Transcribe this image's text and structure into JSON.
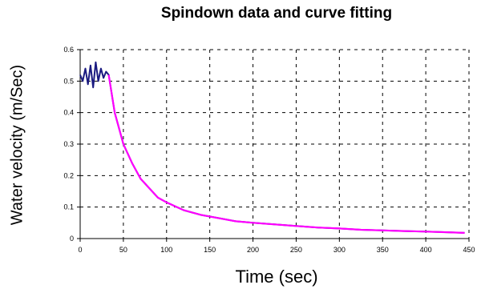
{
  "chart_data": {
    "type": "line",
    "title": "Spindown data and curve fitting",
    "xlabel": "Time (sec)",
    "ylabel": "Water velocity (m/Sec)",
    "xlim": [
      0,
      450
    ],
    "ylim": [
      0,
      0.6
    ],
    "x_ticks": [
      "0",
      "50",
      "100",
      "150",
      "200",
      "250",
      "300",
      "350",
      "400",
      "450"
    ],
    "y_ticks": [
      "0",
      "0.1",
      "0.2",
      "0.3",
      "0.4",
      "0.5",
      "0.6"
    ],
    "grid": "dashed",
    "legend": "none",
    "series": [
      {
        "color": "#1a1a80",
        "x": [
          0,
          3,
          6,
          9,
          12,
          15,
          18,
          21,
          24,
          27,
          30,
          33,
          40,
          50,
          60,
          70,
          80,
          90,
          100,
          120,
          140,
          160,
          180,
          200,
          225,
          250,
          275,
          300,
          325,
          350,
          375,
          400,
          425,
          445
        ],
        "y": [
          0.52,
          0.5,
          0.54,
          0.49,
          0.55,
          0.48,
          0.56,
          0.5,
          0.54,
          0.51,
          0.53,
          0.52,
          0.4,
          0.3,
          0.24,
          0.19,
          0.16,
          0.13,
          0.115,
          0.09,
          0.075,
          0.065,
          0.055,
          0.05,
          0.045,
          0.04,
          0.035,
          0.032,
          0.028,
          0.026,
          0.024,
          0.022,
          0.02,
          0.018
        ]
      },
      {
        "color": "#ff00ff",
        "x": [
          33,
          40,
          50,
          60,
          70,
          80,
          90,
          100,
          120,
          140,
          160,
          180,
          200,
          225,
          250,
          275,
          300,
          325,
          350,
          375,
          400,
          425,
          445
        ],
        "y": [
          0.52,
          0.4,
          0.3,
          0.24,
          0.19,
          0.16,
          0.13,
          0.115,
          0.09,
          0.075,
          0.065,
          0.055,
          0.05,
          0.045,
          0.04,
          0.035,
          0.032,
          0.028,
          0.026,
          0.024,
          0.022,
          0.02,
          0.018
        ]
      }
    ]
  }
}
